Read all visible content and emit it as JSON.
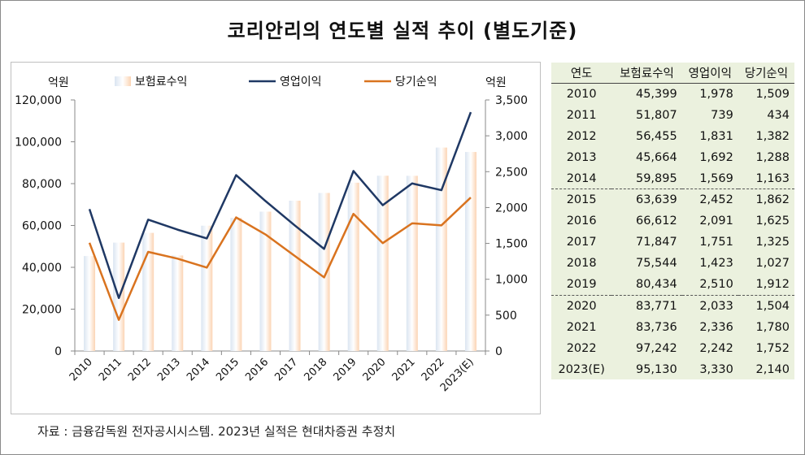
{
  "title": "코리안리의 연도별 실적 추이 (별도기준)",
  "source": "자료 : 금융감독원 전자공시시스템. 2023년 실적은 현대차증권 추정치",
  "colors": {
    "bar_light": "#dbe5f1",
    "bar_light2": "#fbd4b4",
    "line_op": "#1f3864",
    "line_net": "#d9731f",
    "table_bg": "#ebf1de"
  },
  "table": {
    "headers": [
      "연도",
      "보험료수익",
      "영업이익",
      "당기순익"
    ],
    "rows": [
      [
        "2010",
        "45,399",
        "1,978",
        "1,509"
      ],
      [
        "2011",
        "51,807",
        "739",
        "434"
      ],
      [
        "2012",
        "56,455",
        "1,831",
        "1,382"
      ],
      [
        "2013",
        "45,664",
        "1,692",
        "1,288"
      ],
      [
        "2014",
        "59,895",
        "1,569",
        "1,163"
      ],
      [
        "2015",
        "63,639",
        "2,452",
        "1,862"
      ],
      [
        "2016",
        "66,612",
        "2,091",
        "1,625"
      ],
      [
        "2017",
        "71,847",
        "1,751",
        "1,325"
      ],
      [
        "2018",
        "75,544",
        "1,423",
        "1,027"
      ],
      [
        "2019",
        "80,434",
        "2,510",
        "1,912"
      ],
      [
        "2020",
        "83,771",
        "2,033",
        "1,504"
      ],
      [
        "2021",
        "83,736",
        "2,336",
        "1,780"
      ],
      [
        "2022",
        "97,242",
        "2,242",
        "1,752"
      ],
      [
        "2023(E)",
        "95,130",
        "3,330",
        "2,140"
      ]
    ]
  },
  "chart_data": {
    "type": "bar",
    "categories": [
      "2010",
      "2011",
      "2012",
      "2013",
      "2014",
      "2015",
      "2016",
      "2017",
      "2018",
      "2019",
      "2020",
      "2021",
      "2022",
      "2023(E)"
    ],
    "y_left_label": "억원",
    "y_right_label": "억원",
    "ylim_left": [
      0,
      120000
    ],
    "ylim_right": [
      0,
      3500
    ],
    "y_left_ticks": [
      "0",
      "20,000",
      "40,000",
      "60,000",
      "80,000",
      "100,000",
      "120,000"
    ],
    "y_right_ticks": [
      "0",
      "500",
      "1,000",
      "1,500",
      "2,000",
      "2,500",
      "3,000",
      "3,500"
    ],
    "grid": false,
    "legend_position": "top",
    "series": [
      {
        "name": "보험료수익",
        "type": "bar",
        "axis": "left",
        "values": [
          45399,
          51807,
          56455,
          45664,
          59895,
          63639,
          66612,
          71847,
          75544,
          80434,
          83771,
          83736,
          97242,
          95130
        ]
      },
      {
        "name": "영업이익",
        "type": "line",
        "axis": "right",
        "values": [
          1978,
          739,
          1831,
          1692,
          1569,
          2452,
          2091,
          1751,
          1423,
          2510,
          2033,
          2336,
          2242,
          3330
        ]
      },
      {
        "name": "당기순익",
        "type": "line",
        "axis": "right",
        "values": [
          1509,
          434,
          1382,
          1288,
          1163,
          1862,
          1625,
          1325,
          1027,
          1912,
          1504,
          1780,
          1752,
          2140
        ]
      }
    ]
  }
}
